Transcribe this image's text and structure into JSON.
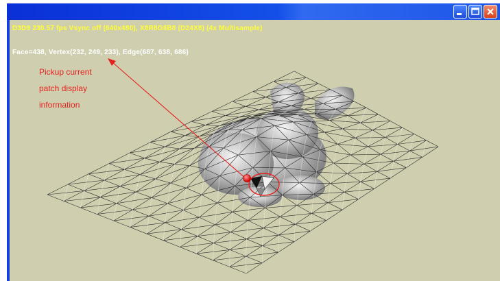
{
  "window": {
    "controls": {
      "minimize_icon": "minimize-icon",
      "maximize_icon": "maximize-icon",
      "close_icon": "close-icon"
    }
  },
  "overlay": {
    "stats_text": "D3D9 230.57 fps Vsync off (640x480), X8R8G8B8 (D24X8) (4x Multisample)",
    "patch_info_text": "Face=438, Vertex(232, 249, 233), Edge(687, 638, 686)"
  },
  "annotation": {
    "lines": [
      "Pickup current",
      "patch display",
      "information"
    ],
    "color": "#e42020"
  },
  "colors": {
    "background": "#cfcfb0",
    "stats_text": "#ffff33",
    "titlebar": "#1450e8",
    "mesh": "#2a2a2a"
  }
}
